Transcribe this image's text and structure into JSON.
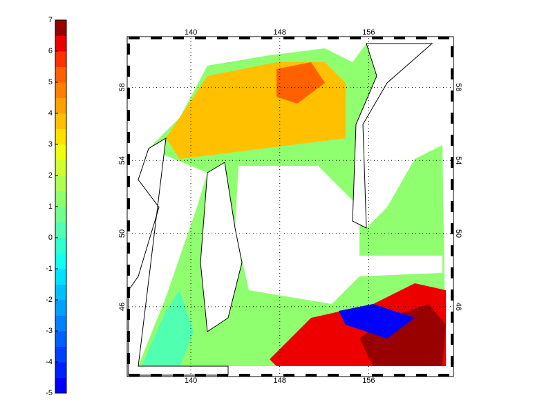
{
  "colorbar": {
    "ticks": [
      -5,
      -4,
      -3,
      -2,
      -1,
      0,
      1,
      2,
      3,
      4,
      5,
      6,
      7
    ],
    "colors": [
      "#0000ff",
      "#0020ff",
      "#0040ff",
      "#0060ff",
      "#0080ff",
      "#00a0ff",
      "#00c0ff",
      "#00e0ff",
      "#10ffef",
      "#30ffcf",
      "#50ffaf",
      "#70ff8f",
      "#8fff70",
      "#afff50",
      "#cfff30",
      "#efff10",
      "#ffe000",
      "#ffc000",
      "#ffa000",
      "#ff8000",
      "#ff6000",
      "#ff3000",
      "#ee0000",
      "#990000"
    ]
  },
  "map": {
    "lon_lim": [
      134.4,
      163.5
    ],
    "lat_lim": [
      42.25,
      60.7
    ],
    "lon_ticks": [
      140,
      148,
      156
    ],
    "lat_ticks": [
      46,
      50,
      54,
      58
    ],
    "grid": true
  }
}
